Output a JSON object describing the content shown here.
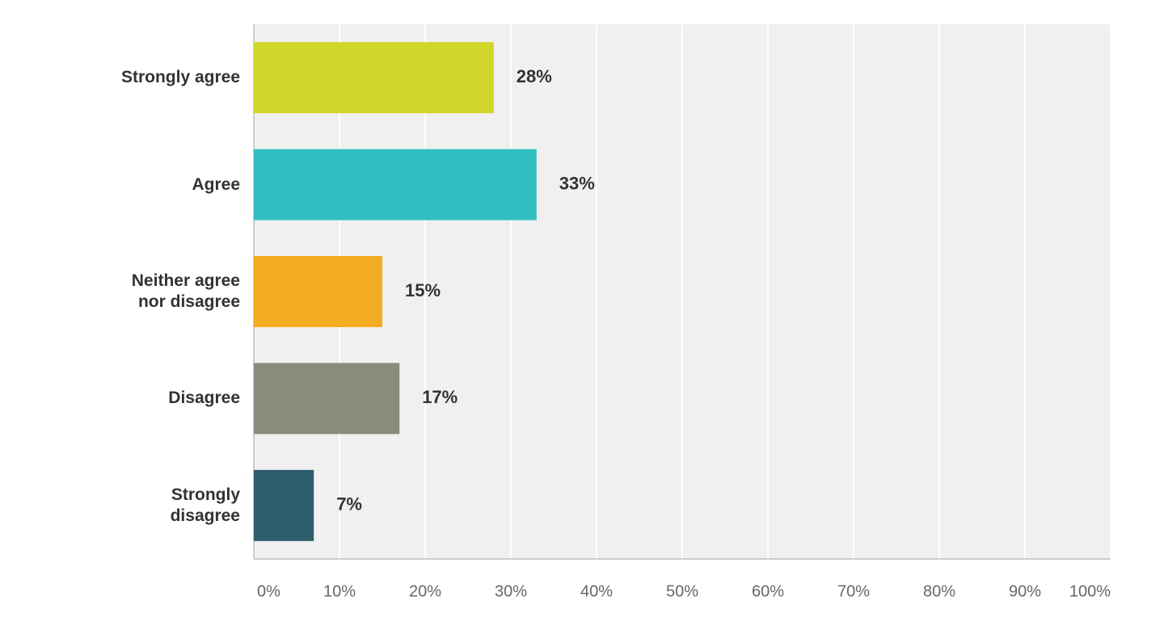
{
  "chart_data": {
    "type": "bar",
    "orientation": "horizontal",
    "categories": [
      "Strongly agree",
      "Agree",
      "Neither agree nor disagree",
      "Disagree",
      "Strongly disagree"
    ],
    "values": [
      28,
      33,
      15,
      17,
      7
    ],
    "value_labels": [
      "28%",
      "33%",
      "15%",
      "17%",
      "7%"
    ],
    "colors": [
      "#d0d62a",
      "#33bec1",
      "#f4ad22",
      "#8a8b7c",
      "#2e5d6c"
    ],
    "xlim": [
      0,
      100
    ],
    "xticks": [
      {
        "value": 0,
        "label": "0%"
      },
      {
        "value": 10,
        "label": "10%"
      },
      {
        "value": 20,
        "label": "20%"
      },
      {
        "value": 30,
        "label": "30%"
      },
      {
        "value": 40,
        "label": "40%"
      },
      {
        "value": 50,
        "label": "50%"
      },
      {
        "value": 60,
        "label": "60%"
      },
      {
        "value": 70,
        "label": "70%"
      },
      {
        "value": 80,
        "label": "80%"
      },
      {
        "value": 90,
        "label": "90%"
      },
      {
        "value": 100,
        "label": "100%"
      }
    ],
    "grid": true
  }
}
